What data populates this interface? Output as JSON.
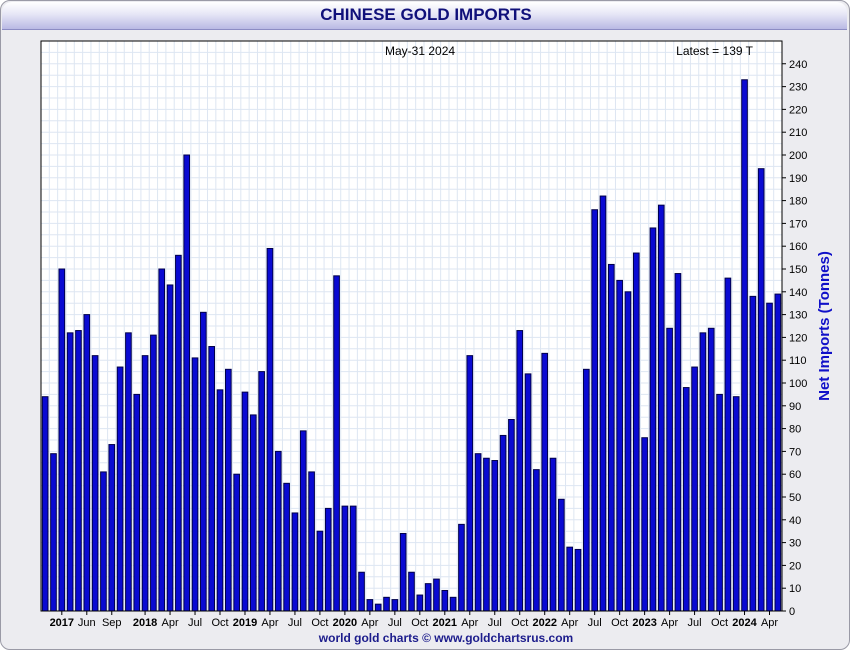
{
  "header": {
    "title": "CHINESE GOLD IMPORTS"
  },
  "footer": {
    "text": "world gold charts © www.goldchartsrus.com"
  },
  "colors": {
    "bar_fill": "#0a0ad2",
    "bar_stroke": "#00004a",
    "grid": "#dde6f2",
    "ylabel": "#1010c8"
  },
  "chart_data": {
    "type": "bar",
    "date_label": "May-31  2024",
    "latest_label": "Latest = 139 T",
    "xlabel": "",
    "ylabel": "Net Imports (Tonnes)",
    "ylim": [
      0,
      250
    ],
    "y_ticks": [
      0,
      10,
      20,
      30,
      40,
      50,
      60,
      70,
      80,
      90,
      100,
      110,
      120,
      130,
      140,
      150,
      160,
      170,
      180,
      190,
      200,
      210,
      220,
      230,
      240
    ],
    "grid": true,
    "x_tick_labels": [
      {
        "index": 2,
        "label": "2017",
        "bold": true
      },
      {
        "index": 5,
        "label": "Jun",
        "bold": false
      },
      {
        "index": 8,
        "label": "Sep",
        "bold": false
      },
      {
        "index": 12,
        "label": "2018",
        "bold": true
      },
      {
        "index": 15,
        "label": "Apr",
        "bold": false
      },
      {
        "index": 18,
        "label": "Jul",
        "bold": false
      },
      {
        "index": 21,
        "label": "Oct",
        "bold": false
      },
      {
        "index": 24,
        "label": "2019",
        "bold": true
      },
      {
        "index": 27,
        "label": "Apr",
        "bold": false
      },
      {
        "index": 30,
        "label": "Jul",
        "bold": false
      },
      {
        "index": 33,
        "label": "Oct",
        "bold": false
      },
      {
        "index": 36,
        "label": "2020",
        "bold": true
      },
      {
        "index": 39,
        "label": "Apr",
        "bold": false
      },
      {
        "index": 42,
        "label": "Jul",
        "bold": false
      },
      {
        "index": 45,
        "label": "Oct",
        "bold": false
      },
      {
        "index": 48,
        "label": "2021",
        "bold": true
      },
      {
        "index": 51,
        "label": "Apr",
        "bold": false
      },
      {
        "index": 54,
        "label": "Jul",
        "bold": false
      },
      {
        "index": 57,
        "label": "Oct",
        "bold": false
      },
      {
        "index": 60,
        "label": "2022",
        "bold": true
      },
      {
        "index": 63,
        "label": "Apr",
        "bold": false
      },
      {
        "index": 66,
        "label": "Jul",
        "bold": false
      },
      {
        "index": 69,
        "label": "Oct",
        "bold": false
      },
      {
        "index": 72,
        "label": "2023",
        "bold": true
      },
      {
        "index": 75,
        "label": "Apr",
        "bold": false
      },
      {
        "index": 78,
        "label": "Jul",
        "bold": false
      },
      {
        "index": 81,
        "label": "Oct",
        "bold": false
      },
      {
        "index": 84,
        "label": "2024",
        "bold": true
      },
      {
        "index": 87,
        "label": "Apr",
        "bold": false
      }
    ],
    "values": [
      94,
      69,
      150,
      122,
      123,
      130,
      112,
      61,
      73,
      107,
      122,
      95,
      112,
      121,
      150,
      143,
      156,
      200,
      111,
      131,
      116,
      97,
      106,
      60,
      96,
      86,
      105,
      159,
      70,
      56,
      43,
      79,
      61,
      35,
      45,
      147,
      46,
      46,
      17,
      5,
      3,
      6,
      5,
      34,
      17,
      7,
      12,
      14,
      9,
      6,
      38,
      112,
      69,
      67,
      66,
      77,
      84,
      123,
      104,
      62,
      113,
      67,
      49,
      28,
      27,
      106,
      176,
      182,
      152,
      145,
      140,
      157,
      76,
      168,
      178,
      124,
      148,
      98,
      107,
      122,
      124,
      95,
      146,
      94,
      233,
      138,
      194,
      135,
      139
    ]
  }
}
